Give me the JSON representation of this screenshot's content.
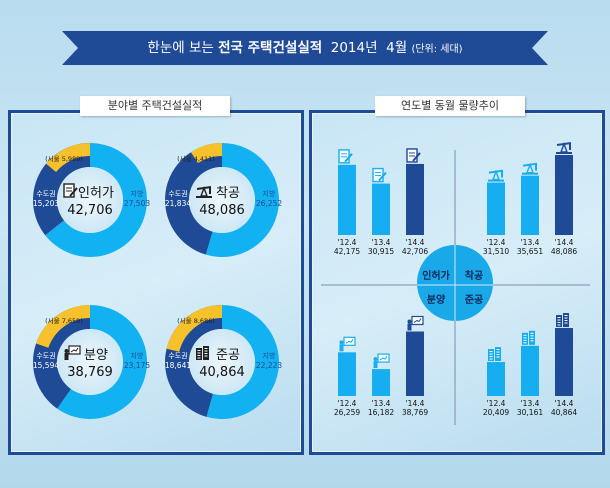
{
  "header": {
    "title_prefix": "한눈에 보는 ",
    "title_bold": "전국 주택건설실적",
    "title_year": "2014년",
    "title_month": "4월",
    "unit": "(단위: 세대)"
  },
  "colors": {
    "banner": "#1f4a96",
    "local": "#12b2f2",
    "capital": "#1f4a96",
    "seoul": "#f6c12a",
    "current_bar": "#1f4a96",
    "past_bar": "#16aef0",
    "center_circle": "#19a8e8"
  },
  "left_panel": {
    "title": "분야별 주택건설실적"
  },
  "right_panel": {
    "title": "연도별 동월 물량추이",
    "center_labels": [
      "인허가",
      "착공",
      "분양",
      "준공"
    ]
  },
  "chart_data": [
    {
      "type": "pie",
      "title": "인허가",
      "total": "42,706",
      "icon": "document-pen-icon",
      "slices": [
        {
          "name": "지방",
          "value": 27503,
          "label": "27,503"
        },
        {
          "name": "수도권",
          "value": 15203,
          "label": "15,203"
        }
      ],
      "seoul": {
        "name": "서울",
        "value": 5989,
        "label": "(서울 5,989)"
      }
    },
    {
      "type": "pie",
      "title": "착공",
      "total": "48,086",
      "icon": "oil-pump-icon",
      "slices": [
        {
          "name": "지방",
          "value": 26252,
          "label": "26,252"
        },
        {
          "name": "수도권",
          "value": 21834,
          "label": "21,834"
        }
      ],
      "seoul": {
        "name": "서울",
        "value": 4411,
        "label": "(서울 4,411)"
      }
    },
    {
      "type": "pie",
      "title": "분양",
      "total": "38,769",
      "icon": "presenter-board-icon",
      "slices": [
        {
          "name": "지방",
          "value": 23175,
          "label": "23,175"
        },
        {
          "name": "수도권",
          "value": 15594,
          "label": "15,594"
        }
      ],
      "seoul": {
        "name": "서울",
        "value": 7659,
        "label": "(서울 7,659)"
      }
    },
    {
      "type": "pie",
      "title": "준공",
      "total": "40,864",
      "icon": "buildings-icon",
      "slices": [
        {
          "name": "지방",
          "value": 22223,
          "label": "22,223"
        },
        {
          "name": "수도권",
          "value": 18641,
          "label": "18,641"
        }
      ],
      "seoul": {
        "name": "서울",
        "value": 8686,
        "label": "(서울 8,686)"
      }
    },
    {
      "type": "bar",
      "title": "인허가",
      "categories": [
        "'12.4",
        "'13.4",
        "'14.4"
      ],
      "values": [
        42175,
        30915,
        42706
      ],
      "value_labels": [
        "42,175",
        "30,915",
        "42,706"
      ]
    },
    {
      "type": "bar",
      "title": "착공",
      "categories": [
        "'12.4",
        "'13.4",
        "'14.4"
      ],
      "values": [
        31510,
        35651,
        48086
      ],
      "value_labels": [
        "31,510",
        "35,651",
        "48,086"
      ]
    },
    {
      "type": "bar",
      "title": "분양",
      "categories": [
        "'12.4",
        "'13.4",
        "'14.4"
      ],
      "values": [
        26259,
        16182,
        38769
      ],
      "value_labels": [
        "26,259",
        "16,182",
        "38,769"
      ]
    },
    {
      "type": "bar",
      "title": "준공",
      "categories": [
        "'12.4",
        "'13.4",
        "'14.4"
      ],
      "values": [
        20409,
        30161,
        40864
      ],
      "value_labels": [
        "20,409",
        "30,161",
        "40,864"
      ]
    }
  ]
}
